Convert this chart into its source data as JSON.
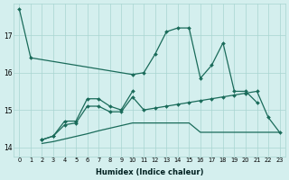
{
  "xlabel": "Humidex (Indice chaleur)",
  "bg_color": "#d4efee",
  "grid_color": "#a8d5d1",
  "line_color": "#1a6b5a",
  "ylim": [
    13.75,
    17.85
  ],
  "yticks": [
    14,
    15,
    16,
    17
  ],
  "xticks": [
    0,
    1,
    2,
    3,
    4,
    5,
    6,
    7,
    8,
    9,
    10,
    11,
    12,
    13,
    14,
    15,
    16,
    17,
    18,
    19,
    20,
    21,
    22,
    23
  ],
  "line1_x": [
    0,
    1,
    10,
    11,
    12,
    13,
    14,
    15,
    16,
    17,
    18,
    19,
    20,
    21
  ],
  "line1_y": [
    17.7,
    16.4,
    15.95,
    16.0,
    16.5,
    17.1,
    17.2,
    17.2,
    15.85,
    16.2,
    16.8,
    15.5,
    15.5,
    15.2
  ],
  "line2_x": [
    2,
    3,
    4,
    5,
    6,
    7,
    8,
    9,
    10
  ],
  "line2_y": [
    14.2,
    14.3,
    14.7,
    14.7,
    15.3,
    15.3,
    15.1,
    15.0,
    15.5
  ],
  "line3_x": [
    2,
    3,
    4,
    5,
    6,
    7,
    8,
    9,
    10,
    11,
    12,
    13,
    14,
    15,
    16,
    17,
    18,
    19,
    20,
    21,
    22,
    23
  ],
  "line3_y": [
    14.2,
    14.3,
    14.6,
    14.65,
    15.1,
    15.1,
    14.95,
    14.95,
    15.35,
    15.0,
    15.05,
    15.1,
    15.15,
    15.2,
    15.25,
    15.3,
    15.35,
    15.4,
    15.45,
    15.5,
    14.8,
    14.4
  ],
  "line4_x": [
    2,
    3,
    4,
    5,
    6,
    7,
    8,
    9,
    10,
    11,
    12,
    13,
    14,
    15,
    16,
    17,
    18,
    19,
    20,
    21,
    22,
    23
  ],
  "line4_y": [
    14.1,
    14.15,
    14.22,
    14.29,
    14.36,
    14.44,
    14.51,
    14.58,
    14.65,
    14.65,
    14.65,
    14.65,
    14.65,
    14.65,
    14.4,
    14.4,
    14.4,
    14.4,
    14.4,
    14.4,
    14.4,
    14.4
  ]
}
